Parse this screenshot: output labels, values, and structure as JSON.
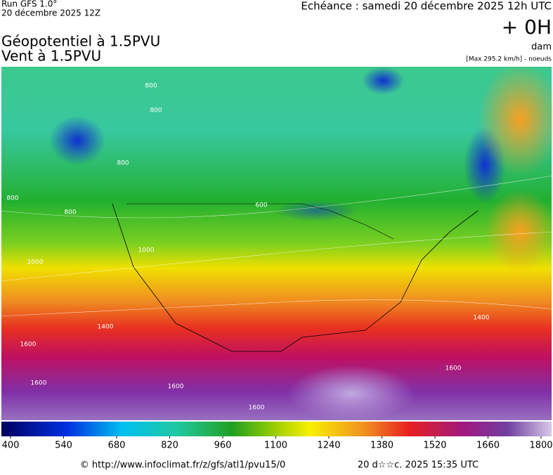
{
  "header": {
    "run": "Run GFS 1.0°",
    "run_date": "20 décembre 2025 12Z",
    "forecast": "Echéance : samedi 20 décembre 2025 12h UTC",
    "offset": "+ 0H",
    "unit": "dam",
    "title_1": "Géopotentiel à 1.5PVU",
    "title_2": "Vent à 1.5PVU",
    "max_note": "[Max 295.2 km/h] - noeuds"
  },
  "map": {
    "contour_labels": [
      "800",
      "800",
      "800",
      "800",
      "800",
      "600",
      "1000",
      "1000",
      "1400",
      "1400",
      "1600",
      "1600",
      "1600",
      "1600",
      "1600"
    ]
  },
  "colorbar": {
    "min": 400,
    "max": 1800,
    "ticks": [
      400,
      540,
      680,
      820,
      960,
      1100,
      1240,
      1380,
      1520,
      1660,
      1800
    ]
  },
  "footer": {
    "url": "© http://www.infoclimat.fr/z/gfs/atl1/pvu15/0",
    "stamp": "20 d☆☆c. 2025 15:35 UTC"
  }
}
